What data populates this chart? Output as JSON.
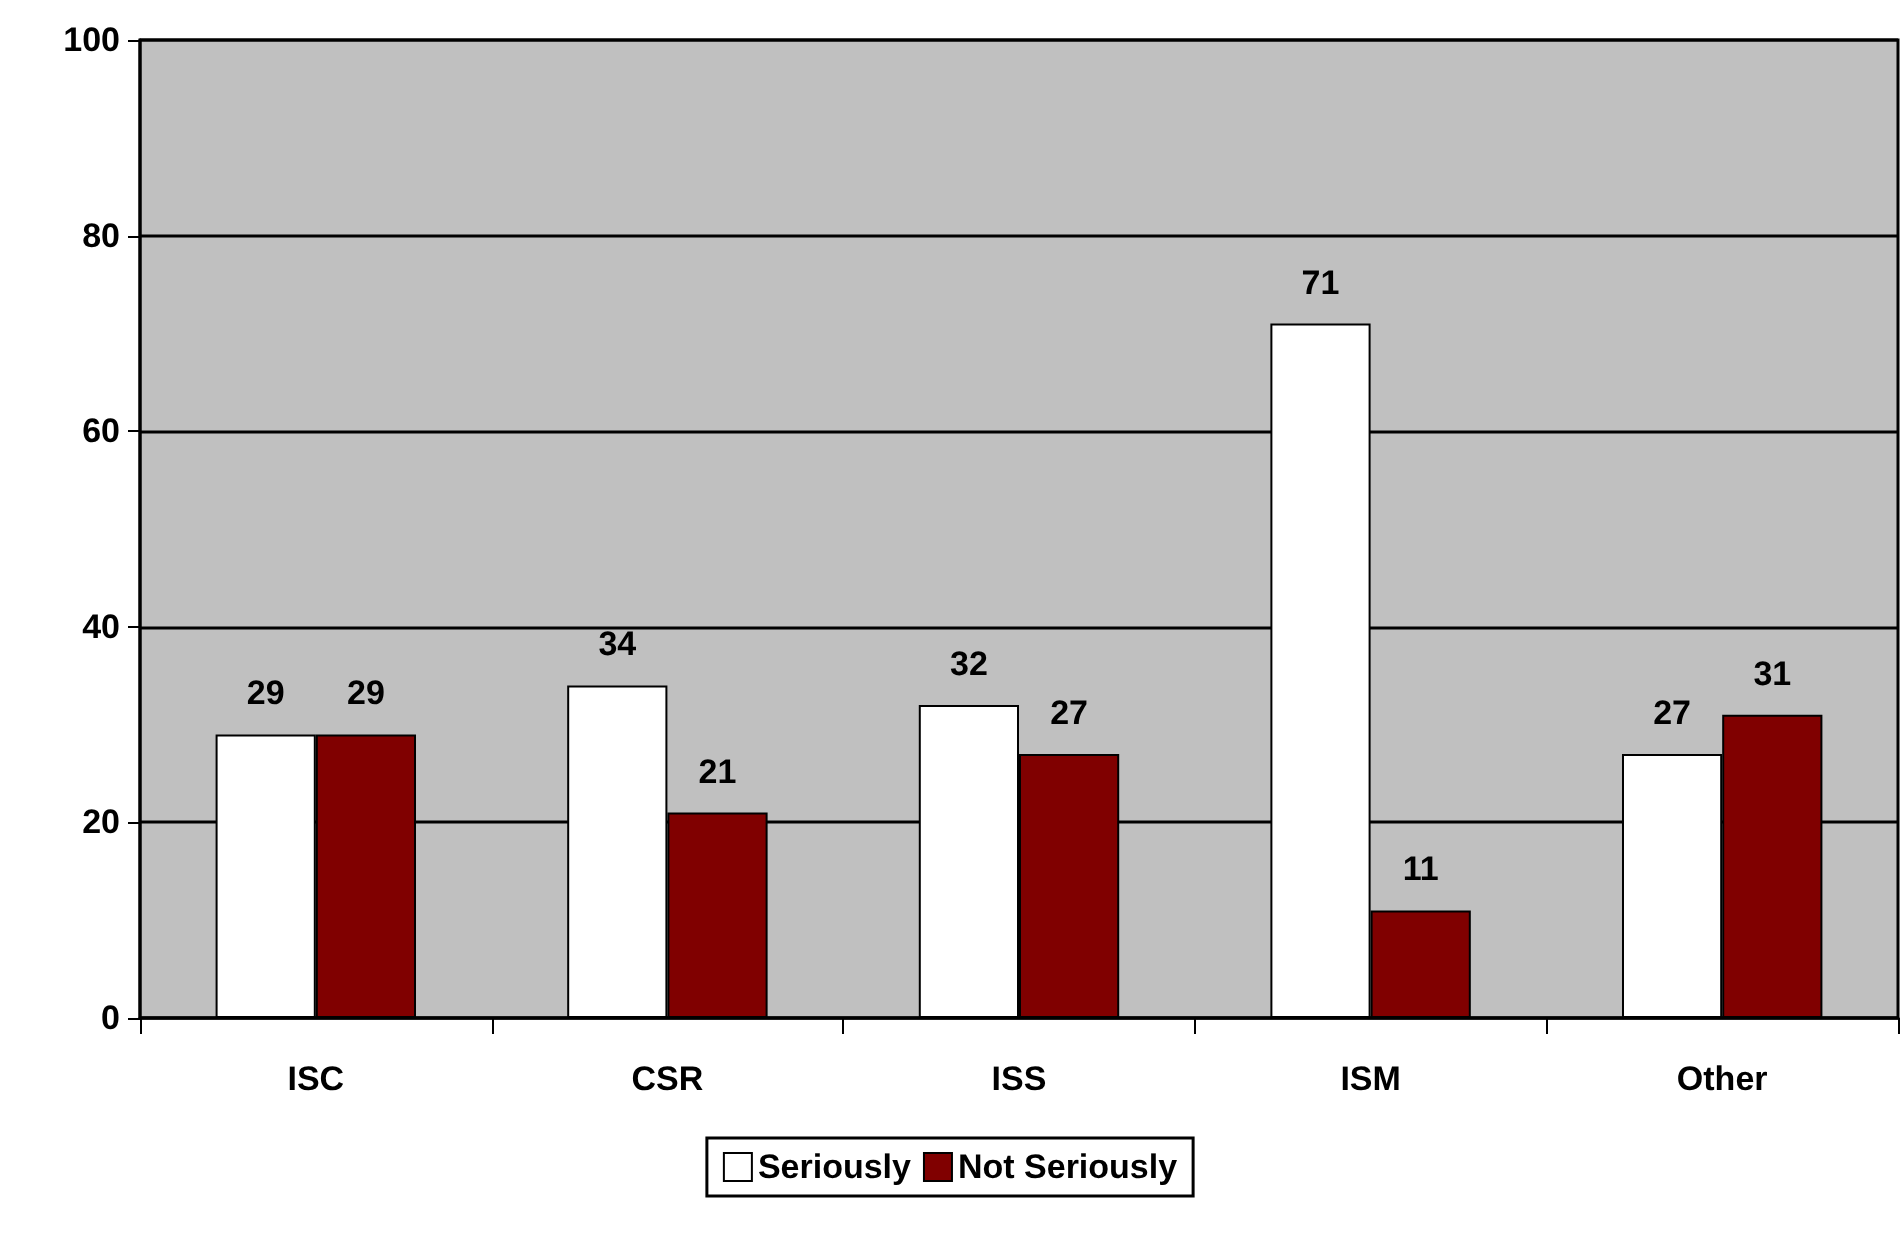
{
  "chart_data": {
    "type": "bar",
    "categories": [
      "ISC",
      "CSR",
      "ISS",
      "ISM",
      "Other"
    ],
    "series": [
      {
        "name": "Seriously",
        "color": "#ffffff",
        "values": [
          29,
          34,
          32,
          71,
          27
        ]
      },
      {
        "name": "Not Seriously",
        "color": "#800000",
        "values": [
          29,
          21,
          27,
          11,
          31
        ]
      }
    ],
    "ylim": [
      0,
      100
    ],
    "yticks": [
      0,
      20,
      40,
      60,
      80,
      100
    ],
    "grid": "y",
    "legend": "bottom",
    "data_labels": true
  }
}
